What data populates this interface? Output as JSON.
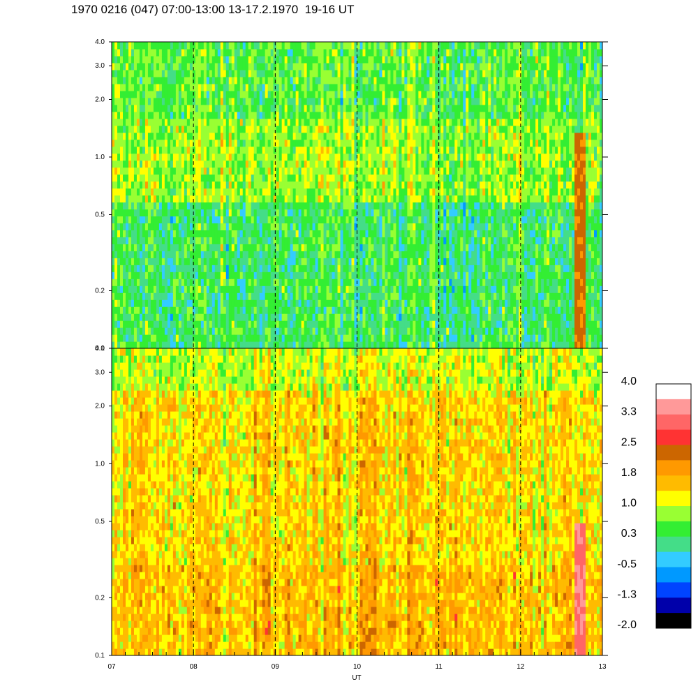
{
  "title": "1970 0216 (047) 07:00-13:00 13-17.2.1970  19-16 UT",
  "chart_data": [
    {
      "type": "heatmap",
      "panel": "upper",
      "title": "",
      "xlabel": "",
      "ylabel": "",
      "x_range": [
        7,
        13
      ],
      "y_range": [
        0.1,
        4.0
      ],
      "y_scale": "log",
      "y_ticks": [
        {
          "value": 0.1,
          "label": "0.1"
        },
        {
          "value": 0.2,
          "label": "0.2"
        },
        {
          "value": 0.5,
          "label": "0.5"
        },
        {
          "value": 1.0,
          "label": "1.0"
        },
        {
          "value": 2.0,
          "label": "2.0"
        },
        {
          "value": 3.0,
          "label": "3.0"
        },
        {
          "value": 4.0,
          "label": "4.0"
        }
      ],
      "x_gridlines": [
        8,
        9,
        10,
        11,
        12
      ],
      "dominant_levels": [
        {
          "y_from": 0.1,
          "y_to": 0.6,
          "level": 0.3
        },
        {
          "y_from": 0.6,
          "y_to": 1.6,
          "level": 0.8
        },
        {
          "y_from": 1.6,
          "y_to": 4.0,
          "level": 0.5
        }
      ],
      "intense_bursts": [
        {
          "x": 12.72,
          "y_from": 0.1,
          "y_to": 1.3,
          "level": 2.2
        }
      ]
    },
    {
      "type": "heatmap",
      "panel": "lower",
      "title": "",
      "xlabel": "UT",
      "ylabel": "",
      "x_range": [
        7,
        13
      ],
      "y_range": [
        0.1,
        4.0
      ],
      "y_scale": "log",
      "x_ticks": [
        {
          "value": 7,
          "label": "07"
        },
        {
          "value": 8,
          "label": "08"
        },
        {
          "value": 9,
          "label": "09"
        },
        {
          "value": 10,
          "label": "10"
        },
        {
          "value": 11,
          "label": "11"
        },
        {
          "value": 12,
          "label": "12"
        },
        {
          "value": 13,
          "label": "13"
        }
      ],
      "y_ticks": [
        {
          "value": 0.1,
          "label": "0.1"
        },
        {
          "value": 0.2,
          "label": "0.2"
        },
        {
          "value": 0.5,
          "label": "0.5"
        },
        {
          "value": 1.0,
          "label": "1.0"
        },
        {
          "value": 2.0,
          "label": "2.0"
        },
        {
          "value": 3.0,
          "label": "3.0"
        },
        {
          "value": 4.0,
          "label": "4.0"
        }
      ],
      "x_gridlines": [
        8,
        9,
        10,
        11,
        12
      ],
      "dominant_levels": [
        {
          "y_from": 0.1,
          "y_to": 0.3,
          "level": 1.6
        },
        {
          "y_from": 0.3,
          "y_to": 2.5,
          "level": 1.4
        },
        {
          "y_from": 2.5,
          "y_to": 4.0,
          "level": 1.0
        }
      ],
      "intense_bursts": [
        {
          "x": 12.72,
          "y_from": 0.1,
          "y_to": 0.5,
          "level": 3.2
        }
      ]
    }
  ],
  "colorbar": {
    "labels": [
      "4.0",
      "3.3",
      "2.5",
      "1.8",
      "1.0",
      "0.3",
      "-0.5",
      "-1.3",
      "-2.0"
    ],
    "colors": [
      "#ffffff",
      "#ff9999",
      "#ff6666",
      "#ff3333",
      "#cc6600",
      "#ff9900",
      "#ffbb00",
      "#ffff00",
      "#99ff33",
      "#33ee33",
      "#44dd88",
      "#33ccff",
      "#0099ff",
      "#0044ff",
      "#0000aa",
      "#000000"
    ]
  }
}
